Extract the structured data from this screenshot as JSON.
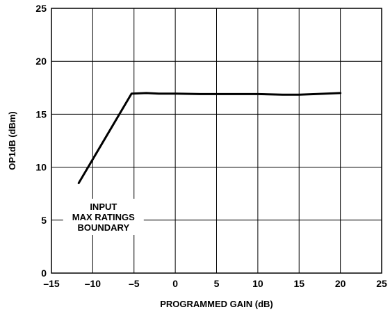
{
  "chart_data": {
    "type": "line",
    "xlabel": "PROGRAMMED GAIN (dB)",
    "ylabel": "OP1dB (dBm)",
    "xlim": [
      -15,
      25
    ],
    "ylim": [
      0,
      25
    ],
    "x_ticks": [
      -15,
      -10,
      -5,
      0,
      5,
      10,
      15,
      20,
      25
    ],
    "y_ticks": [
      0,
      5,
      10,
      15,
      20,
      25
    ],
    "x_tick_labels": [
      "–15",
      "–10",
      "–5",
      "0",
      "5",
      "10",
      "15",
      "20",
      "25"
    ],
    "y_tick_labels": [
      "0",
      "5",
      "10",
      "15",
      "20",
      "25"
    ],
    "grid": true,
    "series": [
      {
        "x": [
          -11.7,
          -5.3,
          -3.5,
          -2.0,
          0.0,
          3.0,
          5.0,
          8.0,
          10.0,
          13.0,
          15.0,
          17.0,
          20.0
        ],
        "y": [
          8.5,
          16.95,
          17.0,
          16.95,
          16.95,
          16.9,
          16.9,
          16.9,
          16.9,
          16.85,
          16.85,
          16.9,
          17.0
        ]
      }
    ],
    "annotations": [
      "INPUT",
      "MAX RATINGS",
      "BOUNDARY"
    ]
  }
}
